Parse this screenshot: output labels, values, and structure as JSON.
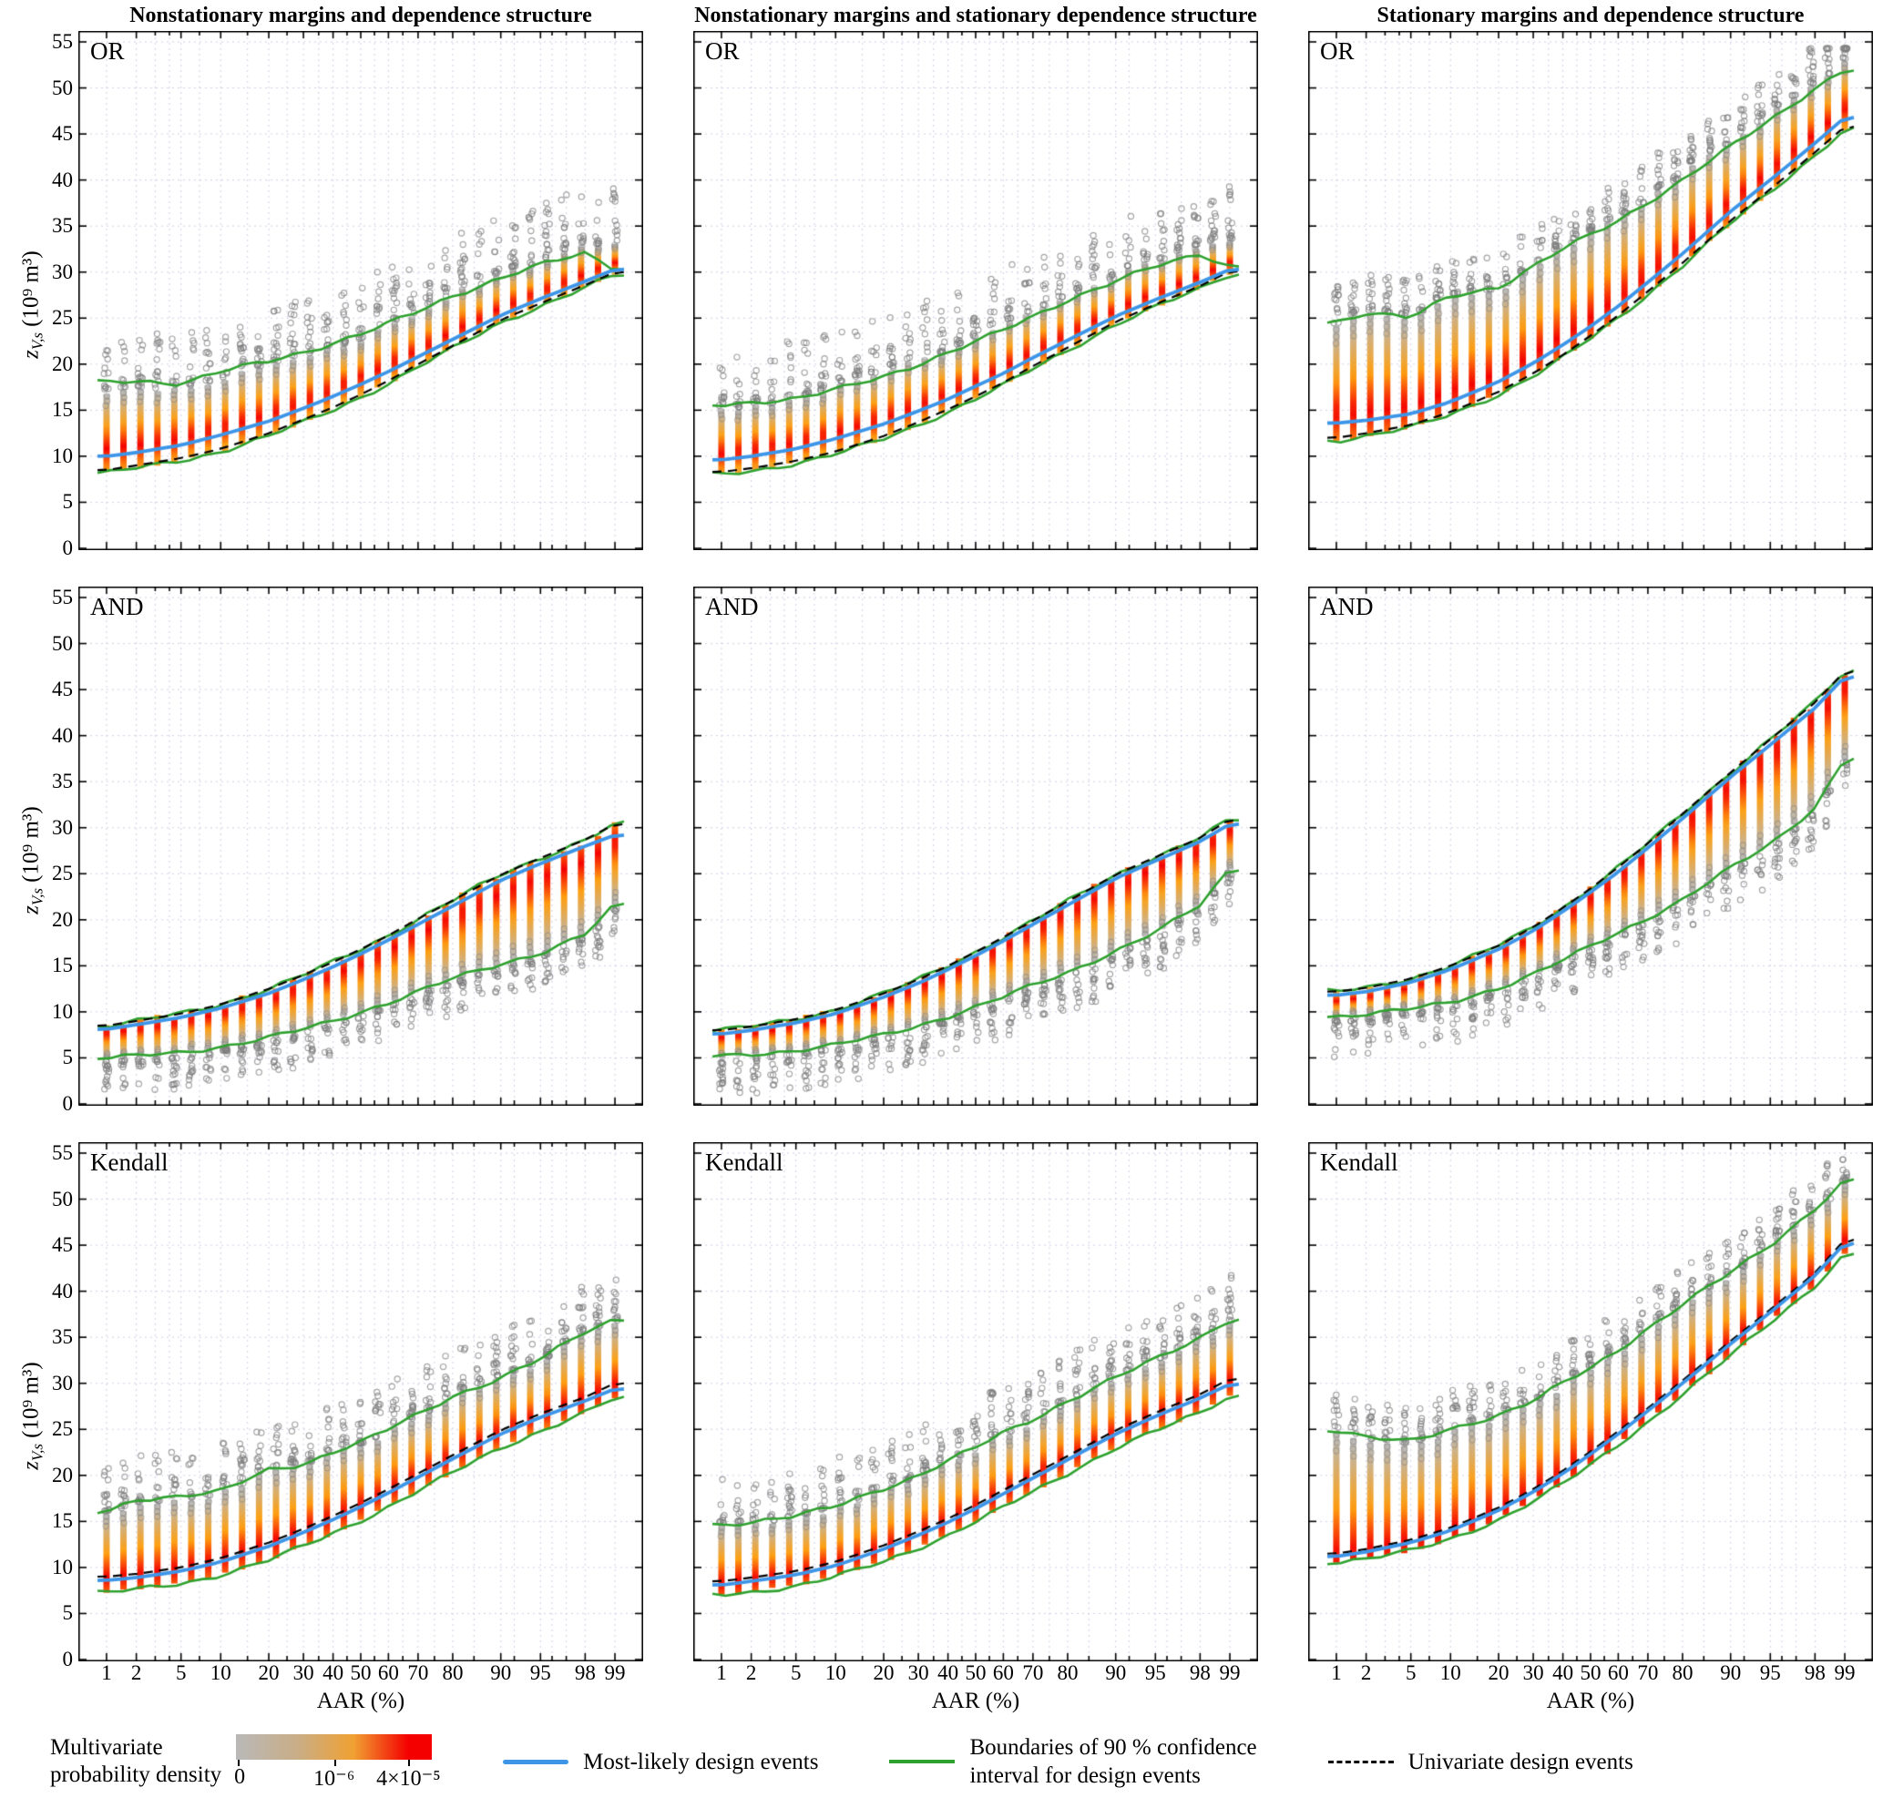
{
  "figure": {
    "column_titles": [
      "Nonstationary margins and dependence structure",
      "Nonstationary margins and stationary dependence structure",
      "Stationary margins and dependence structure"
    ],
    "row_labels": [
      "OR",
      "AND",
      "Kendall"
    ]
  },
  "axes": {
    "y_var": "z",
    "y_sub": "V,s",
    "y_unit": "(10⁹ m³)",
    "x_label": "AAR (%)"
  },
  "legend": {
    "density_label_1": "Multivariate",
    "density_label_2": "probability density",
    "cb_ticks": [
      "0",
      "10⁻⁶",
      "4×10⁻⁵"
    ],
    "most_likely": "Most-likely design events",
    "ci_line1": "Boundaries of 90 % confidence",
    "ci_line2": "interval for design events",
    "univariate": "Univariate design events"
  },
  "colors": {
    "most_likely": "#3d95e8",
    "confidence": "#2ea12e",
    "univariate": "#000000",
    "density_low": "#b9b9b9",
    "density_mid": "#ffa010",
    "density_high": "#f40000",
    "grid": "#cfcfe6"
  },
  "chart_data": {
    "type": "scatter",
    "n_bars": 31,
    "x_axis": {
      "label": "AAR (%)",
      "scale": "probit",
      "ticks": [
        1,
        2,
        5,
        10,
        20,
        30,
        40,
        50,
        60,
        70,
        80,
        90,
        95,
        98,
        99
      ],
      "minor_ticks": [
        3,
        4,
        7,
        15,
        25,
        35,
        45,
        55,
        65,
        75,
        85,
        92,
        96,
        97
      ]
    },
    "y_axis": {
      "label": "z_V,s (10^9 m^3)",
      "ticks": [
        0,
        5,
        10,
        15,
        20,
        25,
        30,
        35,
        40,
        45,
        50,
        55
      ],
      "range": [
        0,
        55
      ]
    },
    "tick_aar": [
      1,
      2,
      5,
      10,
      20,
      30,
      40,
      50,
      60,
      70,
      80,
      90,
      95,
      98,
      99
    ],
    "panels": [
      {
        "row": "OR",
        "column": 0,
        "scatter_side": "above",
        "scatter_spread": 6,
        "univariate": [
          8.5,
          9,
          9.8,
          10.8,
          12.5,
          14,
          15.3,
          16.7,
          18.2,
          20,
          22,
          24.8,
          26.6,
          28.6,
          30
        ],
        "most_likely": [
          10,
          10.4,
          11.2,
          12.3,
          13.8,
          15.2,
          16.5,
          17.8,
          19.2,
          20.8,
          22.7,
          25.3,
          27.1,
          29,
          30.3
        ],
        "green_upper": [
          18,
          18.2,
          17.9,
          19.2,
          20.3,
          21.3,
          22.3,
          23.3,
          24.4,
          25.7,
          27.4,
          29.4,
          30.8,
          32,
          30.4
        ],
        "green_lower": [
          8.2,
          8.7,
          9.5,
          10.5,
          12.2,
          13.7,
          15,
          16.4,
          17.9,
          19.7,
          21.7,
          24.5,
          26.3,
          28.3,
          29.7
        ],
        "bar_top": [
          16.5,
          17,
          17,
          18.5,
          19.8,
          20.8,
          21.8,
          22.8,
          24,
          25.6,
          27.4,
          29.6,
          31,
          32.6,
          33.2
        ],
        "density_peak": [
          10.8,
          11.2,
          12,
          13.1,
          14.6,
          16,
          17.3,
          18.6,
          20,
          21.6,
          23.5,
          26.1,
          27.9,
          29.8,
          31
        ]
      },
      {
        "row": "OR",
        "column": 1,
        "scatter_side": "above",
        "scatter_spread": 6,
        "univariate": [
          8.3,
          8.7,
          9.5,
          10.5,
          12.2,
          13.7,
          15.1,
          16.5,
          18,
          19.8,
          21.8,
          24.6,
          26.5,
          28.5,
          30.1
        ],
        "most_likely": [
          9.6,
          10,
          10.8,
          11.9,
          13.5,
          14.9,
          16.2,
          17.6,
          19,
          20.7,
          22.6,
          25.2,
          27,
          28.9,
          30.3
        ],
        "green_upper": [
          15.6,
          15.9,
          16.2,
          17.2,
          18.7,
          20,
          21.2,
          22.4,
          23.7,
          25.2,
          27,
          29,
          30.6,
          32,
          30.6
        ],
        "green_lower": [
          8,
          8.4,
          9.2,
          10.2,
          11.9,
          13.4,
          14.8,
          16.2,
          17.7,
          19.5,
          21.5,
          24.3,
          26.2,
          28.2,
          29.8
        ],
        "bar_top": [
          15,
          15.5,
          16,
          17.6,
          19,
          20.2,
          21.5,
          22.7,
          24,
          25.6,
          27.4,
          29.4,
          31,
          32.4,
          33
        ],
        "density_peak": [
          10.3,
          10.7,
          11.5,
          12.6,
          14.2,
          15.6,
          16.9,
          18.3,
          19.7,
          21.4,
          23.3,
          25.9,
          27.7,
          29.6,
          31
        ]
      },
      {
        "row": "OR",
        "column": 2,
        "scatter_side": "above",
        "scatter_spread": 4,
        "univariate": [
          12,
          12.5,
          13.4,
          14.8,
          17,
          19,
          21,
          23.1,
          25.3,
          27.9,
          31,
          35.6,
          39,
          43,
          45.8
        ],
        "most_likely": [
          13.6,
          13.9,
          14.6,
          15.9,
          18.1,
          20.1,
          22.1,
          24.1,
          26.3,
          28.9,
          32,
          36.6,
          40,
          44,
          46.8
        ],
        "green_upper": [
          24.6,
          25.6,
          25,
          27.4,
          28.4,
          30.6,
          32.5,
          34,
          35.6,
          37.6,
          40,
          43.6,
          46.5,
          50,
          52
        ],
        "green_lower": [
          11.7,
          12.2,
          13.1,
          14.5,
          16.7,
          18.7,
          20.7,
          22.8,
          25,
          27.6,
          30.7,
          35.3,
          38.7,
          42.7,
          45.5
        ],
        "bar_top": [
          24,
          25.2,
          25,
          27,
          28.2,
          30.2,
          32.2,
          34.2,
          36,
          38,
          40.5,
          44,
          47,
          50.5,
          52.5
        ],
        "density_peak": [
          14.6,
          14.9,
          15.6,
          16.9,
          19.1,
          21.1,
          23.1,
          25.1,
          27.3,
          29.9,
          33,
          37.6,
          41,
          45,
          47.8
        ]
      },
      {
        "row": "AND",
        "column": 0,
        "scatter_side": "below",
        "scatter_spread": 3.5,
        "univariate": [
          8.5,
          9,
          9.8,
          10.8,
          12.5,
          14,
          15.4,
          16.8,
          18.3,
          20.1,
          22.1,
          24.9,
          26.7,
          28.7,
          30.4
        ],
        "most_likely": [
          8.1,
          8.6,
          9.4,
          10.4,
          12,
          13.5,
          14.9,
          16.3,
          17.8,
          19.5,
          21.5,
          24.3,
          26.1,
          28,
          29.2
        ],
        "green_upper": [
          8.5,
          9,
          9.8,
          10.8,
          12.5,
          14,
          15.4,
          16.8,
          18.3,
          20.1,
          22.1,
          24.9,
          26.7,
          28.7,
          30.4
        ],
        "green_lower": [
          5,
          5.2,
          5.6,
          6.2,
          7.2,
          8.1,
          9,
          10,
          11,
          12.2,
          13.6,
          15.2,
          16.4,
          18.4,
          21.6
        ],
        "bar_top": [
          8.4,
          8.9,
          9.7,
          10.7,
          12.4,
          13.9,
          15.3,
          16.7,
          18.2,
          20,
          22,
          24.8,
          26.6,
          28.6,
          30.3
        ],
        "density_peak": [
          7.7,
          8.1,
          8.9,
          9.8,
          11.3,
          12.7,
          14,
          15.3,
          16.7,
          18.4,
          20.2,
          22.8,
          24.4,
          26.4,
          28.4
        ]
      },
      {
        "row": "AND",
        "column": 1,
        "scatter_side": "below",
        "scatter_spread": 4,
        "univariate": [
          8,
          8.4,
          9.2,
          10.2,
          12,
          13.5,
          15,
          16.5,
          18.1,
          19.9,
          22,
          24.9,
          26.8,
          28.9,
          30.9
        ],
        "most_likely": [
          7.6,
          8,
          8.8,
          9.8,
          11.6,
          13.1,
          14.6,
          16.1,
          17.7,
          19.5,
          21.6,
          24.5,
          26.4,
          28.5,
          30.4
        ],
        "green_upper": [
          8,
          8.4,
          9.2,
          10.2,
          12,
          13.5,
          15,
          16.5,
          18.1,
          19.9,
          22,
          24.9,
          26.8,
          28.9,
          30.9
        ],
        "green_lower": [
          5.2,
          5.4,
          5.8,
          6.4,
          7.5,
          8.5,
          9.5,
          10.5,
          11.6,
          12.9,
          14.3,
          16.6,
          18.6,
          21.6,
          25.6
        ],
        "bar_top": [
          7.9,
          8.3,
          9.1,
          10.1,
          11.9,
          13.4,
          14.9,
          16.4,
          18,
          19.8,
          21.9,
          24.8,
          26.7,
          28.8,
          30.8
        ],
        "density_peak": [
          7.2,
          7.6,
          8.4,
          9.4,
          11.1,
          12.6,
          14,
          15.5,
          17,
          18.8,
          20.8,
          23.6,
          25.6,
          27.6,
          29.6
        ]
      },
      {
        "row": "AND",
        "column": 2,
        "scatter_side": "below",
        "scatter_spread": 4,
        "univariate": [
          12.2,
          12.6,
          13.6,
          15,
          17.2,
          19.2,
          21.3,
          23.4,
          25.7,
          28.3,
          31.5,
          36,
          39.6,
          43.6,
          47
        ],
        "most_likely": [
          11.8,
          12.2,
          13.2,
          14.6,
          16.8,
          18.8,
          20.9,
          23,
          25.2,
          27.8,
          31,
          35.5,
          39,
          43,
          46.4
        ],
        "green_upper": [
          12.2,
          12.6,
          13.6,
          15,
          17.2,
          19.2,
          21.3,
          23.4,
          25.7,
          28.3,
          31.5,
          36,
          39.6,
          43.6,
          47
        ],
        "green_lower": [
          9.5,
          9.8,
          10.3,
          11,
          12.6,
          14.1,
          15.6,
          17.1,
          18.6,
          20.2,
          22.2,
          25.6,
          28.2,
          32.2,
          37.6
        ],
        "bar_top": [
          12.1,
          12.5,
          13.5,
          14.9,
          17.1,
          19.1,
          21.2,
          23.3,
          25.6,
          28.2,
          31.4,
          35.9,
          39.5,
          43.5,
          46.9
        ],
        "density_peak": [
          11.2,
          11.6,
          12.6,
          14,
          16.1,
          18.1,
          20.1,
          22.2,
          24.4,
          27,
          30,
          34.4,
          37.8,
          41.8,
          45.2
        ]
      },
      {
        "row": "Kendall",
        "column": 0,
        "scatter_side": "above",
        "scatter_spread": 5,
        "univariate": [
          9,
          9.3,
          10,
          11,
          12.7,
          14.2,
          15.6,
          17,
          18.5,
          20.2,
          22.2,
          24.9,
          26.7,
          28.5,
          30
        ],
        "most_likely": [
          8.6,
          8.9,
          9.6,
          10.6,
          12.3,
          13.8,
          15.2,
          16.6,
          18.1,
          19.8,
          21.8,
          24.5,
          26.3,
          28.1,
          29.4
        ],
        "green_upper": [
          16,
          17.4,
          17.8,
          18.2,
          20.6,
          21.2,
          22.6,
          23.6,
          25,
          26.6,
          28.6,
          30.6,
          32.6,
          35.6,
          37
        ],
        "green_lower": [
          7.3,
          7.6,
          8.2,
          9.2,
          10.8,
          12.3,
          13.7,
          15.1,
          16.6,
          18.3,
          20.3,
          23,
          24.8,
          26.8,
          28.4
        ],
        "bar_top": [
          15.7,
          17.1,
          17.5,
          17.9,
          20.3,
          20.9,
          22.3,
          23.3,
          24.7,
          26.3,
          28.3,
          30.3,
          32.3,
          35.3,
          36.7
        ],
        "density_peak": [
          8.9,
          9.2,
          9.9,
          10.9,
          12.6,
          14.1,
          15.5,
          16.9,
          18.4,
          20.1,
          22.1,
          24.8,
          26.6,
          28.4,
          29.8
        ]
      },
      {
        "row": "Kendall",
        "column": 1,
        "scatter_side": "above",
        "scatter_spread": 5,
        "univariate": [
          8.5,
          8.9,
          9.6,
          10.6,
          12.4,
          13.9,
          15.3,
          16.8,
          18.4,
          20.1,
          22.1,
          24.9,
          26.8,
          28.8,
          30.5
        ],
        "most_likely": [
          8.1,
          8.5,
          9.2,
          10.2,
          12,
          13.5,
          14.9,
          16.4,
          18,
          19.7,
          21.7,
          24.5,
          26.4,
          28.4,
          29.9
        ],
        "green_upper": [
          14.6,
          15,
          15.6,
          16.6,
          18.6,
          20,
          21.6,
          23,
          24.6,
          26.1,
          28.1,
          30.6,
          32.6,
          35,
          37
        ],
        "green_lower": [
          7,
          7.3,
          8,
          9,
          10.6,
          12.1,
          13.5,
          15,
          16.5,
          18.2,
          20.2,
          23,
          24.8,
          26.8,
          28.6
        ],
        "bar_top": [
          14.3,
          14.7,
          15.3,
          16.3,
          18.3,
          19.7,
          21.3,
          22.7,
          24.3,
          25.8,
          27.8,
          30.3,
          32.3,
          34.7,
          36.7
        ],
        "density_peak": [
          8.3,
          8.7,
          9.4,
          10.4,
          12.2,
          13.7,
          15.1,
          16.6,
          18.2,
          19.9,
          21.9,
          24.7,
          26.6,
          28.6,
          30.3
        ]
      },
      {
        "row": "Kendall",
        "column": 2,
        "scatter_side": "above",
        "scatter_spread": 4,
        "univariate": [
          11.5,
          12,
          13,
          14.3,
          16.5,
          18.5,
          20.5,
          22.6,
          24.8,
          27.3,
          30.3,
          34.6,
          38,
          42,
          45.6
        ],
        "most_likely": [
          11.2,
          11.7,
          12.7,
          14,
          16.2,
          18.2,
          20.2,
          22.3,
          24.5,
          27,
          30,
          34.3,
          37.7,
          41.7,
          45.2
        ],
        "green_upper": [
          25,
          24.2,
          23.6,
          25,
          26.6,
          28.1,
          30,
          31.6,
          33.6,
          36,
          38.6,
          42,
          45,
          49,
          52
        ],
        "green_lower": [
          10.6,
          11,
          11.8,
          13,
          15.2,
          17.2,
          19.1,
          21.1,
          23.3,
          25.8,
          28.8,
          33,
          36.6,
          40.6,
          44
        ],
        "bar_top": [
          24.6,
          23.9,
          23.3,
          24.7,
          26.3,
          27.8,
          29.7,
          31.3,
          33.3,
          35.7,
          38.3,
          41.7,
          44.7,
          48.7,
          51.7
        ],
        "density_peak": [
          11.4,
          11.9,
          12.9,
          14.2,
          16.4,
          18.4,
          20.4,
          22.5,
          24.7,
          27.2,
          30.2,
          34.5,
          37.9,
          41.9,
          45.5
        ]
      }
    ]
  }
}
